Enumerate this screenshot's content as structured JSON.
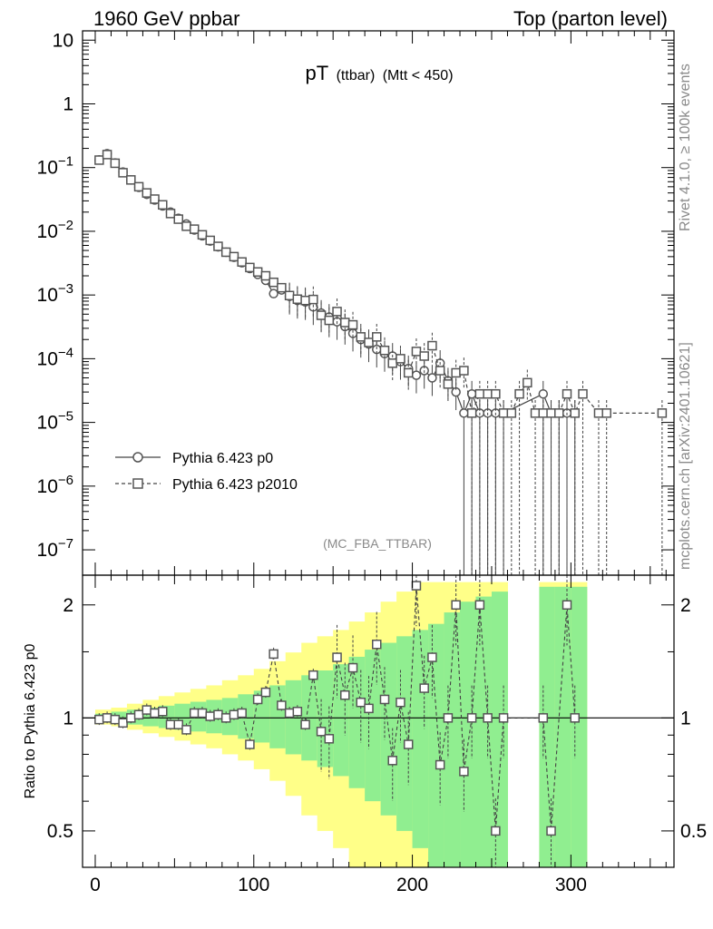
{
  "header": {
    "left": "1960 GeV ppbar",
    "right": "Top (parton level)"
  },
  "side": {
    "rivet": "Rivet 4.1.0, ≥ 100k events",
    "mcplots": "mcplots.cern.ch [arXiv:2401.10621]"
  },
  "colors": {
    "band_inner": "#90ee90",
    "band_outer": "#ffff88",
    "marker": "#555555"
  },
  "chart_data": [
    {
      "type": "scatter",
      "title": "pT",
      "title_sub": "(ttbar)",
      "title_cut": "(Mtt < 450)",
      "analysis": "(MC_FBA_TTBAR)",
      "yscale": "log",
      "xlim": [
        -8,
        365
      ],
      "ylim": [
        4e-08,
        14
      ],
      "y_ticks": [
        {
          "value": 10,
          "label": "10"
        },
        {
          "value": 1,
          "label": "1"
        },
        {
          "value": 0.1,
          "base": "10",
          "exp": "−1"
        },
        {
          "value": 0.01,
          "base": "10",
          "exp": "−2"
        },
        {
          "value": 0.001,
          "base": "10",
          "exp": "−3"
        },
        {
          "value": 0.0001,
          "base": "10",
          "exp": "−4"
        },
        {
          "value": 1e-05,
          "base": "10",
          "exp": "−5"
        },
        {
          "value": 1e-06,
          "base": "10",
          "exp": "−6"
        },
        {
          "value": 1e-07,
          "base": "10",
          "exp": "−7"
        }
      ],
      "series": [
        {
          "name": "Pythia 6.423 p0",
          "marker": "circle",
          "style": "solid",
          "points": [
            [
              2.5,
              0.132
            ],
            [
              7.5,
              0.165
            ],
            [
              12.5,
              0.118
            ],
            [
              17.5,
              0.085
            ],
            [
              22.5,
              0.064
            ],
            [
              27.5,
              0.049
            ],
            [
              32.5,
              0.038
            ],
            [
              37.5,
              0.031
            ],
            [
              42.5,
              0.025
            ],
            [
              47.5,
              0.02
            ],
            [
              52.5,
              0.016
            ],
            [
              57.5,
              0.013
            ],
            [
              62.5,
              0.0105
            ],
            [
              67.5,
              0.0085
            ],
            [
              72.5,
              0.007
            ],
            [
              77.5,
              0.0057
            ],
            [
              82.5,
              0.0047
            ],
            [
              87.5,
              0.0039
            ],
            [
              92.5,
              0.0032
            ],
            [
              97.5,
              0.0026
            ],
            [
              102.5,
              0.0021
            ],
            [
              107.5,
              0.0017
            ],
            [
              112.5,
              0.00105
            ],
            [
              117.5,
              0.0012
            ],
            [
              122.5,
              0.00095
            ],
            [
              127.5,
              0.00082
            ],
            [
              132.5,
              0.00078
            ],
            [
              137.5,
              0.00065
            ],
            [
              142.5,
              0.00052
            ],
            [
              147.5,
              0.00045
            ],
            [
              152.5,
              0.00038
            ],
            [
              157.5,
              0.00032
            ],
            [
              162.5,
              0.00025
            ],
            [
              167.5,
              0.0002
            ],
            [
              172.5,
              0.00017
            ],
            [
              177.5,
              0.00014
            ],
            [
              182.5,
              0.00012
            ],
            [
              187.5,
              0.00011
            ],
            [
              192.5,
              9e-05
            ],
            [
              197.5,
              7e-05
            ],
            [
              202.5,
              5.5e-05
            ],
            [
              207.5,
              6.5e-05
            ],
            [
              212.5,
              5e-05
            ],
            [
              217.5,
              8.5e-05
            ],
            [
              222.5,
              4.5e-05
            ],
            [
              227.5,
              3e-05
            ],
            [
              232.5,
              1.4e-05
            ],
            [
              237.5,
              2.8e-05
            ],
            [
              242.5,
              1.4e-05
            ],
            [
              247.5,
              1.4e-05
            ],
            [
              252.5,
              1.4e-05
            ],
            [
              257.5,
              1.4e-05
            ],
            [
              282.5,
              2.8e-05
            ],
            [
              287.5,
              1.4e-05
            ],
            [
              292.5,
              1.4e-05
            ],
            [
              297.5,
              1.4e-05
            ],
            [
              302.5,
              1.4e-05
            ]
          ]
        },
        {
          "name": "Pythia 6.423 p2010",
          "marker": "square",
          "style": "dashed",
          "points": [
            [
              2.5,
              0.131
            ],
            [
              7.5,
              0.16
            ],
            [
              12.5,
              0.117
            ],
            [
              17.5,
              0.083
            ],
            [
              22.5,
              0.064
            ],
            [
              27.5,
              0.05
            ],
            [
              32.5,
              0.04
            ],
            [
              37.5,
              0.032
            ],
            [
              42.5,
              0.026
            ],
            [
              47.5,
              0.019
            ],
            [
              52.5,
              0.0155
            ],
            [
              57.5,
              0.012
            ],
            [
              62.5,
              0.0108
            ],
            [
              67.5,
              0.0088
            ],
            [
              72.5,
              0.0072
            ],
            [
              77.5,
              0.0058
            ],
            [
              82.5,
              0.0047
            ],
            [
              87.5,
              0.004
            ],
            [
              92.5,
              0.0033
            ],
            [
              97.5,
              0.0027
            ],
            [
              102.5,
              0.0023
            ],
            [
              107.5,
              0.002
            ],
            [
              112.5,
              0.00158
            ],
            [
              117.5,
              0.0013
            ],
            [
              122.5,
              0.00098
            ],
            [
              127.5,
              0.00086
            ],
            [
              132.5,
              0.00082
            ],
            [
              137.5,
              0.00085
            ],
            [
              142.5,
              0.00048
            ],
            [
              147.5,
              0.0004
            ],
            [
              152.5,
              0.00055
            ],
            [
              157.5,
              0.00037
            ],
            [
              162.5,
              0.00034
            ],
            [
              167.5,
              0.00022
            ],
            [
              172.5,
              0.00018
            ],
            [
              177.5,
              0.00022
            ],
            [
              182.5,
              0.000135
            ],
            [
              187.5,
              8.5e-05
            ],
            [
              192.5,
              0.0001
            ],
            [
              197.5,
              6e-05
            ],
            [
              202.5,
              0.00013
            ],
            [
              207.5,
              0.00011
            ],
            [
              212.5,
              0.00016
            ],
            [
              217.5,
              6.5e-05
            ],
            [
              222.5,
              4e-05
            ],
            [
              227.5,
              6e-05
            ],
            [
              232.5,
              6.5e-05
            ],
            [
              237.5,
              1.4e-05
            ],
            [
              242.5,
              2.8e-05
            ],
            [
              247.5,
              2.8e-05
            ],
            [
              252.5,
              2.8e-05
            ],
            [
              257.5,
              1.4e-05
            ],
            [
              262.5,
              1.4e-05
            ],
            [
              267.5,
              2.8e-05
            ],
            [
              272.5,
              4.2e-05
            ],
            [
              277.5,
              1.4e-05
            ],
            [
              282.5,
              1.4e-05
            ],
            [
              287.5,
              1.4e-05
            ],
            [
              292.5,
              1.4e-05
            ],
            [
              297.5,
              2.8e-05
            ],
            [
              302.5,
              1.4e-05
            ],
            [
              307.5,
              2.8e-05
            ],
            [
              317.5,
              1.4e-05
            ],
            [
              322.5,
              1.4e-05
            ],
            [
              357.5,
              1.4e-05
            ]
          ]
        }
      ]
    },
    {
      "type": "scatter",
      "ylabel": "Ratio to Pythia 6.423 p0",
      "yscale": "log",
      "xlim": [
        -8,
        365
      ],
      "ylim": [
        0.4,
        2.4
      ],
      "x_ticks": [
        0,
        100,
        200,
        300
      ],
      "y_ticks": [
        {
          "value": 0.5,
          "label": "0.5"
        },
        {
          "value": 1,
          "label": "1"
        },
        {
          "value": 2,
          "label": "2"
        }
      ],
      "reference_line": 1,
      "band_edges": [
        0,
        10,
        20,
        30,
        40,
        50,
        60,
        70,
        80,
        90,
        100,
        110,
        120,
        130,
        140,
        150,
        160,
        170,
        180,
        190,
        200,
        210,
        220,
        230,
        240,
        250,
        260,
        270,
        280,
        290,
        300,
        310
      ],
      "band_inner": [
        0.02,
        0.03,
        0.04,
        0.05,
        0.06,
        0.07,
        0.08,
        0.09,
        0.1,
        0.12,
        0.14,
        0.17,
        0.2,
        0.23,
        0.26,
        0.3,
        0.35,
        0.4,
        0.45,
        0.5,
        0.55,
        0.6,
        0.7,
        0.8,
        0.85,
        0.9,
        0.0,
        0.0,
        0.95,
        0.95,
        0.95
      ],
      "band_outer": [
        0.04,
        0.05,
        0.07,
        0.09,
        0.11,
        0.13,
        0.15,
        0.17,
        0.2,
        0.23,
        0.27,
        0.32,
        0.38,
        0.45,
        0.5,
        0.55,
        0.62,
        0.7,
        0.8,
        0.9,
        1.0,
        1.0,
        1.0,
        1.0,
        1.0,
        1.0,
        0.0,
        0.0,
        1.0,
        1.0,
        1.0
      ],
      "series": [
        {
          "name": "Pythia 6.423 p2010",
          "points": [
            [
              2.5,
              0.99
            ],
            [
              7.5,
              1.0
            ],
            [
              12.5,
              0.99
            ],
            [
              17.5,
              0.97
            ],
            [
              22.5,
              1.0
            ],
            [
              27.5,
              1.02
            ],
            [
              32.5,
              1.05
            ],
            [
              37.5,
              1.03
            ],
            [
              42.5,
              1.04
            ],
            [
              47.5,
              0.96
            ],
            [
              52.5,
              0.96
            ],
            [
              57.5,
              0.93
            ],
            [
              62.5,
              1.03
            ],
            [
              67.5,
              1.03
            ],
            [
              72.5,
              1.01
            ],
            [
              77.5,
              1.02
            ],
            [
              82.5,
              1.0
            ],
            [
              87.5,
              1.02
            ],
            [
              92.5,
              1.03
            ],
            [
              97.5,
              0.85
            ],
            [
              102.5,
              1.12
            ],
            [
              107.5,
              1.17
            ],
            [
              112.5,
              1.48
            ],
            [
              117.5,
              1.08
            ],
            [
              122.5,
              1.03
            ],
            [
              127.5,
              1.04
            ],
            [
              132.5,
              0.96
            ],
            [
              137.5,
              1.3
            ],
            [
              142.5,
              0.92
            ],
            [
              147.5,
              0.88
            ],
            [
              152.5,
              1.45
            ],
            [
              157.5,
              1.15
            ],
            [
              162.5,
              1.36
            ],
            [
              167.5,
              1.1
            ],
            [
              172.5,
              1.06
            ],
            [
              177.5,
              1.57
            ],
            [
              182.5,
              1.12
            ],
            [
              187.5,
              0.77
            ],
            [
              192.5,
              1.1
            ],
            [
              197.5,
              0.85
            ],
            [
              202.5,
              2.25
            ],
            [
              207.5,
              1.2
            ],
            [
              212.5,
              1.45
            ],
            [
              217.5,
              0.75
            ],
            [
              222.5,
              1.0
            ],
            [
              227.5,
              2.0
            ],
            [
              232.5,
              0.72
            ],
            [
              237.5,
              1.0
            ],
            [
              242.5,
              2.0
            ],
            [
              247.5,
              1.0
            ],
            [
              252.5,
              0.5
            ],
            [
              257.5,
              1.0
            ],
            [
              282.5,
              1.0
            ],
            [
              287.5,
              0.5
            ],
            [
              297.5,
              2.0
            ],
            [
              302.5,
              1.0
            ]
          ]
        }
      ]
    }
  ]
}
